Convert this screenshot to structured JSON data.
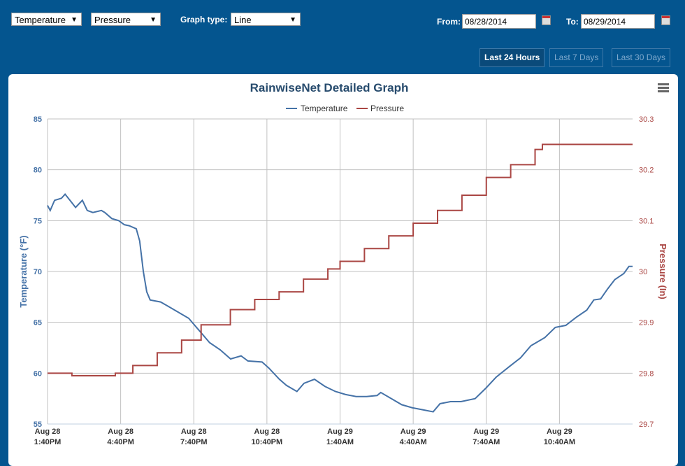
{
  "controls": {
    "series1": "Temperature",
    "series2": "Pressure",
    "graph_type_label": "Graph type:",
    "graph_type": "Line",
    "from_label": "From:",
    "from": "08/28/2014",
    "to_label": "To:",
    "to": "08/29/2014"
  },
  "ranges": [
    {
      "label": "Last 24 Hours",
      "active": true
    },
    {
      "label": "Last 7 Days",
      "active": false
    },
    {
      "label": "Last 30 Days",
      "active": false
    }
  ],
  "chart_data": {
    "type": "line",
    "title": "RainwiseNet Detailed Graph",
    "legend": [
      "Temperature",
      "Pressure"
    ],
    "legend_placement": "top-center",
    "xlabel": "",
    "x_unit": "hours since Aug 28 1:40PM",
    "xlim": [
      0,
      24
    ],
    "x_ticks": [
      {
        "l1": "Aug 28",
        "l2": "1:40PM",
        "h": 0
      },
      {
        "l1": "Aug 28",
        "l2": "4:40PM",
        "h": 3
      },
      {
        "l1": "Aug 28",
        "l2": "7:40PM",
        "h": 6
      },
      {
        "l1": "Aug 28",
        "l2": "10:40PM",
        "h": 9
      },
      {
        "l1": "Aug 29",
        "l2": "1:40AM",
        "h": 12
      },
      {
        "l1": "Aug 29",
        "l2": "4:40AM",
        "h": 15
      },
      {
        "l1": "Aug 29",
        "l2": "7:40AM",
        "h": 18
      },
      {
        "l1": "Aug 29",
        "l2": "10:40AM",
        "h": 21
      }
    ],
    "ylabel": "Temperature (°F)",
    "ylim": [
      55,
      85
    ],
    "y_ticks": [
      "85",
      "80",
      "75",
      "70",
      "65",
      "60",
      "55"
    ],
    "y2label": "Pressure (In)",
    "y2lim": [
      29.7,
      30.3
    ],
    "y2_ticks": [
      "30.3",
      "30.2",
      "30.1",
      "30",
      "29.9",
      "29.8",
      "29.7"
    ],
    "colors": {
      "Temperature": "#4572a7",
      "Pressure": "#aa4643"
    },
    "series": [
      {
        "name": "Temperature",
        "axis": "left",
        "x": [
          0,
          0.11,
          0.29,
          0.57,
          0.72,
          0.92,
          1.15,
          1.43,
          1.63,
          1.86,
          2.21,
          2.35,
          2.64,
          2.92,
          3.15,
          3.35,
          3.64,
          3.78,
          3.93,
          4.07,
          4.21,
          4.64,
          4.93,
          5.36,
          5.79,
          6.22,
          6.65,
          7.08,
          7.51,
          7.94,
          8.22,
          8.8,
          9.08,
          9.51,
          9.8,
          10.23,
          10.52,
          10.95,
          11.38,
          11.81,
          12.23,
          12.66,
          13.09,
          13.52,
          13.67,
          14.1,
          14.53,
          14.96,
          15.39,
          15.82,
          16.1,
          16.53,
          16.96,
          17.54,
          17.97,
          18.4,
          18.97,
          19.4,
          19.83,
          20.4,
          20.83,
          21.26,
          21.69,
          22.12,
          22.41,
          22.69,
          22.98,
          23.27,
          23.64,
          23.85,
          24
        ],
        "y": [
          76.5,
          76,
          77,
          77.2,
          77.6,
          77,
          76.3,
          77,
          76,
          75.8,
          76,
          75.8,
          75.2,
          75,
          74.6,
          74.5,
          74.2,
          73,
          70,
          68,
          67.2,
          67,
          66.6,
          66,
          65.4,
          64.2,
          63,
          62.3,
          61.4,
          61.7,
          61.2,
          61.1,
          60.5,
          59.4,
          58.8,
          58.2,
          59,
          59.4,
          58.7,
          58.2,
          57.9,
          57.7,
          57.7,
          57.8,
          58.1,
          57.5,
          56.9,
          56.6,
          56.4,
          56.2,
          57,
          57.2,
          57.2,
          57.5,
          58.5,
          59.6,
          60.7,
          61.5,
          62.7,
          63.5,
          64.5,
          64.7,
          65.5,
          66.2,
          67.2,
          67.3,
          68.3,
          69.2,
          69.8,
          70.5,
          70.5
        ]
      },
      {
        "name": "Pressure",
        "axis": "right",
        "x": [
          0,
          1,
          2,
          2.78,
          3.5,
          4.5,
          5.5,
          6.3,
          7.5,
          8.5,
          9.5,
          10.5,
          11.5,
          12,
          13,
          14,
          15,
          16,
          17,
          18,
          19,
          20,
          20.3,
          21,
          22,
          23,
          24
        ],
        "y": [
          29.8,
          29.795,
          29.795,
          29.8,
          29.815,
          29.84,
          29.865,
          29.895,
          29.925,
          29.945,
          29.96,
          29.985,
          30.005,
          30.02,
          30.045,
          30.07,
          30.095,
          30.12,
          30.15,
          30.185,
          30.21,
          30.24,
          30.25,
          30.25,
          30.25,
          30.25,
          30.25
        ]
      }
    ]
  }
}
